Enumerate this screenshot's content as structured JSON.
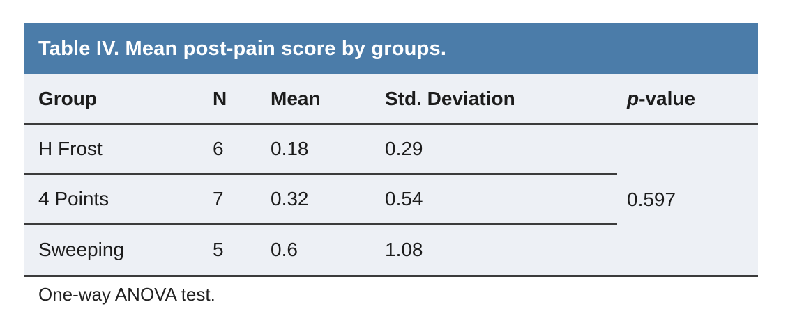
{
  "table": {
    "title": "Table IV. Mean post-pain score by groups.",
    "columns": [
      {
        "label": "Group"
      },
      {
        "label": "N"
      },
      {
        "label": "Mean"
      },
      {
        "label": "Std. Deviation"
      },
      {
        "label": "p-value",
        "italic_prefix": "p",
        "rest": "-value"
      }
    ],
    "rows": [
      {
        "group": "H Frost",
        "n": "6",
        "mean": "0.18",
        "sd": "0.29"
      },
      {
        "group": "4 Points",
        "n": "7",
        "mean": "0.32",
        "sd": "0.54"
      },
      {
        "group": "Sweeping",
        "n": "5",
        "mean": "0.6",
        "sd": "1.08"
      }
    ],
    "p_value": "0.597",
    "footnote": "One-way ANOVA test.",
    "colors": {
      "header_bg": "#4b7ca9",
      "body_bg": "#edf0f5",
      "rule": "#3b3b3b",
      "text": "#1c1c1c",
      "title_text": "#ffffff"
    }
  }
}
